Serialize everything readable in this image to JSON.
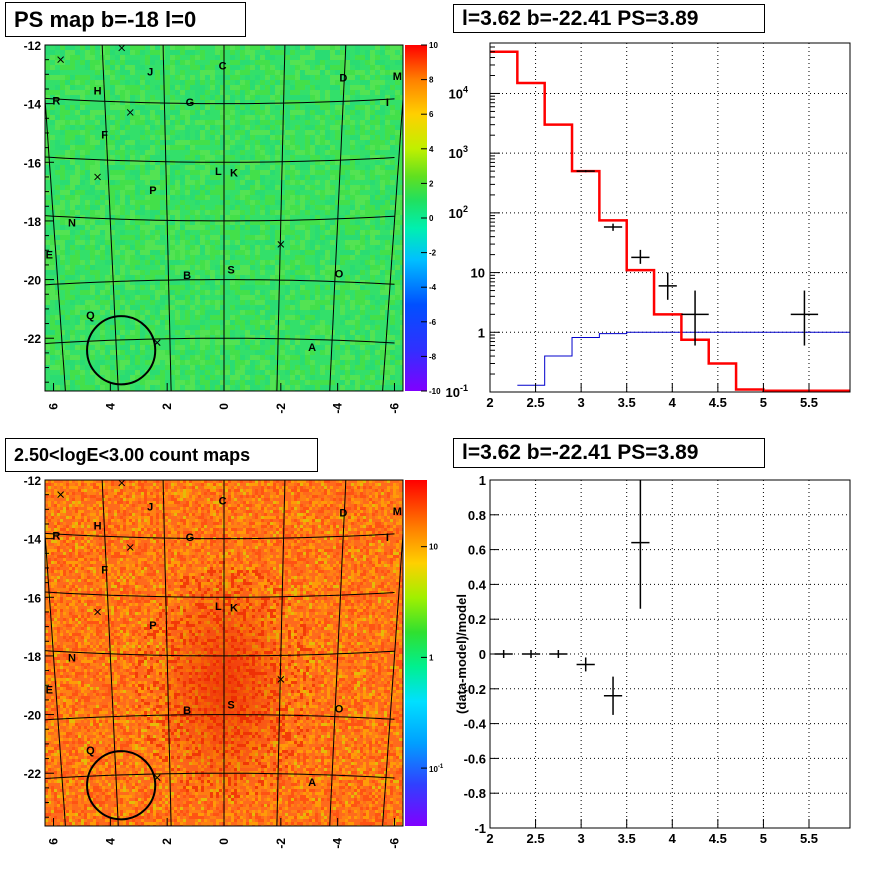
{
  "colors": {
    "map_base": "#33e06a",
    "count_base": "#ff6a1c",
    "model_line": "#ff0000",
    "background_line": "#0000cc",
    "data_marks": "#000000",
    "grid": "#000000"
  },
  "chart_data": [
    {
      "id": "ps_map",
      "type": "heatmap",
      "title": "PS map b=-18 l=0",
      "xlim": [
        6.3,
        -6.3
      ],
      "ylim": [
        -23.8,
        -12
      ],
      "x_ticks": [
        "6",
        "4",
        "2",
        "0",
        "-2",
        "-4",
        "-6"
      ],
      "x_tick_values": [
        6,
        4,
        2,
        0,
        -2,
        -4,
        -6
      ],
      "y_ticks": [
        "-12",
        "-14",
        "-16",
        "-18",
        "-20",
        "-22"
      ],
      "y_tick_values": [
        -12,
        -14,
        -16,
        -18,
        -20,
        -22
      ],
      "colorbar": {
        "min": -10,
        "max": 10,
        "scale": "linear",
        "tick_labels": [
          "10",
          "8",
          "6",
          "4",
          "2",
          "0",
          "-2",
          "-4",
          "-6",
          "-8",
          "-10"
        ],
        "tick_values": [
          10,
          8,
          6,
          4,
          2,
          0,
          -2,
          -4,
          -6,
          -8,
          -10
        ]
      },
      "fill_value": 0,
      "circle": {
        "l": 3.62,
        "b": -22.41,
        "radius_deg": 0.5
      },
      "sources": [
        {
          "label": "J",
          "l": 2.6,
          "b": -12.9
        },
        {
          "label": "C",
          "l": 0.05,
          "b": -12.7
        },
        {
          "label": "D",
          "l": -4.2,
          "b": -13.1
        },
        {
          "label": "M",
          "l": -6.1,
          "b": -13.05
        },
        {
          "label": "H",
          "l": 4.45,
          "b": -13.55
        },
        {
          "label": "R",
          "l": 5.9,
          "b": -13.9
        },
        {
          "label": "G",
          "l": 1.2,
          "b": -13.95
        },
        {
          "label": "I",
          "l": -5.75,
          "b": -13.95
        },
        {
          "label": "F",
          "l": 4.2,
          "b": -15.05
        },
        {
          "label": "L",
          "l": 0.2,
          "b": -16.3
        },
        {
          "label": "K",
          "l": -0.35,
          "b": -16.35
        },
        {
          "label": "P",
          "l": 2.5,
          "b": -16.95
        },
        {
          "label": "N",
          "l": 5.35,
          "b": -18.05
        },
        {
          "label": "E",
          "l": 6.15,
          "b": -19.15
        },
        {
          "label": "B",
          "l": 1.3,
          "b": -19.85
        },
        {
          "label": "S",
          "l": -0.25,
          "b": -19.65
        },
        {
          "label": "O",
          "l": -4.05,
          "b": -19.8
        },
        {
          "label": "Q",
          "l": 4.7,
          "b": -21.2
        },
        {
          "label": "A",
          "l": -3.1,
          "b": -22.3
        }
      ],
      "crosses": [
        {
          "l": 3.6,
          "b": -12.1
        },
        {
          "l": 5.75,
          "b": -12.5
        },
        {
          "l": 3.3,
          "b": -14.3
        },
        {
          "l": 4.45,
          "b": -16.5
        },
        {
          "l": -2.0,
          "b": -18.8
        },
        {
          "l": 2.35,
          "b": -22.15
        }
      ]
    },
    {
      "id": "count_map",
      "type": "heatmap",
      "title": "2.50<logE<3.00 count maps",
      "xlim": [
        6.3,
        -6.3
      ],
      "ylim": [
        -23.8,
        -12
      ],
      "x_ticks": [
        "6",
        "4",
        "2",
        "0",
        "-2",
        "-4",
        "-6"
      ],
      "x_tick_values": [
        6,
        4,
        2,
        0,
        -2,
        -4,
        -6
      ],
      "y_ticks": [
        "-12",
        "-14",
        "-16",
        "-18",
        "-20",
        "-22"
      ],
      "y_tick_values": [
        -12,
        -14,
        -16,
        -18,
        -20,
        -22
      ],
      "colorbar": {
        "scale": "log",
        "min": 0.03,
        "max": 40,
        "tick_labels": [
          "10",
          "1"
        ],
        "tick_values": [
          10,
          1
        ],
        "exp_label": {
          "mantissa": "10",
          "exponent": "-1",
          "value": 0.1
        }
      },
      "fill_value": 12,
      "circle": {
        "l": 3.62,
        "b": -22.41,
        "radius_deg": 0.5
      },
      "sources": [
        {
          "label": "J",
          "l": 2.6,
          "b": -12.9
        },
        {
          "label": "C",
          "l": 0.05,
          "b": -12.7
        },
        {
          "label": "D",
          "l": -4.2,
          "b": -13.1
        },
        {
          "label": "M",
          "l": -6.1,
          "b": -13.05
        },
        {
          "label": "H",
          "l": 4.45,
          "b": -13.55
        },
        {
          "label": "R",
          "l": 5.9,
          "b": -13.9
        },
        {
          "label": "G",
          "l": 1.2,
          "b": -13.95
        },
        {
          "label": "I",
          "l": -5.75,
          "b": -13.95
        },
        {
          "label": "F",
          "l": 4.2,
          "b": -15.05
        },
        {
          "label": "L",
          "l": 0.2,
          "b": -16.3
        },
        {
          "label": "K",
          "l": -0.35,
          "b": -16.35
        },
        {
          "label": "P",
          "l": 2.5,
          "b": -16.95
        },
        {
          "label": "N",
          "l": 5.35,
          "b": -18.05
        },
        {
          "label": "E",
          "l": 6.15,
          "b": -19.15
        },
        {
          "label": "B",
          "l": 1.3,
          "b": -19.85
        },
        {
          "label": "S",
          "l": -0.25,
          "b": -19.65
        },
        {
          "label": "O",
          "l": -4.05,
          "b": -19.8
        },
        {
          "label": "Q",
          "l": 4.7,
          "b": -21.2
        },
        {
          "label": "A",
          "l": -3.1,
          "b": -22.3
        }
      ],
      "crosses": [
        {
          "l": 3.6,
          "b": -12.1
        },
        {
          "l": 5.75,
          "b": -12.5
        },
        {
          "l": 3.3,
          "b": -14.3
        },
        {
          "l": 4.45,
          "b": -16.5
        },
        {
          "l": -2.0,
          "b": -18.8
        },
        {
          "l": 2.35,
          "b": -22.15
        }
      ]
    },
    {
      "id": "spectrum",
      "type": "line",
      "title": "l=3.62 b=-22.41 PS=3.89",
      "xlim": [
        2,
        5.95
      ],
      "ylim": [
        0.1,
        70000
      ],
      "yscale": "log",
      "grid": true,
      "x_ticks": [
        "2",
        "2.5",
        "3",
        "3.5",
        "4",
        "4.5",
        "5",
        "5.5"
      ],
      "x_tick_values": [
        2,
        2.5,
        3,
        3.5,
        4,
        4.5,
        5,
        5.5
      ],
      "y_ticks": [
        "1",
        "10"
      ],
      "y_tick_values": [
        1,
        10
      ],
      "y_exp_ticks": [
        {
          "mantissa": "10",
          "exponent": "-1",
          "value": 0.1
        },
        {
          "mantissa": "10",
          "exponent": "2",
          "value": 100
        },
        {
          "mantissa": "10",
          "exponent": "3",
          "value": 1000
        },
        {
          "mantissa": "10",
          "exponent": "4",
          "value": 10000
        }
      ],
      "series": [
        {
          "type": "step",
          "edges": [
            2,
            2.3,
            2.6,
            2.9,
            3.2,
            3.5,
            3.8,
            4.1,
            4.4,
            4.7,
            5.0,
            5.95
          ],
          "values": [
            50000,
            15000,
            3000,
            500,
            75,
            11,
            2,
            0.75,
            0.3,
            0.11,
            0.105
          ]
        },
        {
          "type": "step",
          "edges": [
            2.3,
            2.6,
            2.9,
            3.2,
            3.5,
            5.95
          ],
          "values": [
            0.13,
            0.4,
            0.82,
            0.95,
            1.0
          ]
        },
        {
          "type": "errorbars",
          "x": [
            3.05,
            3.35,
            3.65,
            3.95,
            4.25,
            5.45
          ],
          "y": [
            500,
            58,
            18,
            6,
            2,
            2
          ],
          "xerr": [
            0.1,
            0.1,
            0.1,
            0.1,
            0.15,
            0.15
          ],
          "ylo": [
            480,
            50,
            14,
            3.5,
            0.6,
            0.6
          ],
          "yhi": [
            520,
            66,
            24,
            10,
            5,
            5
          ]
        }
      ]
    },
    {
      "id": "residuals",
      "type": "scatter",
      "title": "l=3.62 b=-22.41 PS=3.89",
      "ylabel": "(data-model)/model",
      "xlim": [
        2,
        5.95
      ],
      "ylim": [
        -1,
        1
      ],
      "grid": true,
      "x_ticks": [
        "2",
        "2.5",
        "3",
        "3.5",
        "4",
        "4.5",
        "5",
        "5.5"
      ],
      "x_tick_values": [
        2,
        2.5,
        3,
        3.5,
        4,
        4.5,
        5,
        5.5
      ],
      "y_ticks": [
        "1",
        "0.8",
        "0.6",
        "0.4",
        "0.2",
        "0",
        "-0.2",
        "-0.4",
        "-0.6",
        "-0.8",
        "-1"
      ],
      "y_tick_values": [
        1,
        0.8,
        0.6,
        0.4,
        0.2,
        0,
        -0.2,
        -0.4,
        -0.6,
        -0.8,
        -1
      ],
      "series": [
        {
          "type": "errorbars",
          "x": [
            2.15,
            2.45,
            2.75,
            3.05,
            3.35,
            3.65
          ],
          "y": [
            0,
            0,
            0,
            -0.06,
            -0.24,
            0.64
          ],
          "xerr": [
            0.1,
            0.1,
            0.1,
            0.1,
            0.1,
            0.1
          ],
          "ylo": [
            0,
            0,
            0,
            -0.1,
            -0.35,
            0.26
          ],
          "yhi": [
            0,
            0,
            0,
            -0.02,
            -0.13,
            1.0
          ]
        }
      ]
    }
  ]
}
